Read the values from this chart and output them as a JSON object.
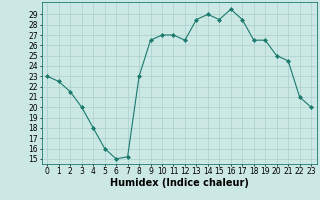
{
  "x": [
    0,
    1,
    2,
    3,
    4,
    5,
    6,
    7,
    8,
    9,
    10,
    11,
    12,
    13,
    14,
    15,
    16,
    17,
    18,
    19,
    20,
    21,
    22,
    23
  ],
  "y": [
    23,
    22.5,
    21.5,
    20,
    18,
    16,
    15,
    15.2,
    23,
    26.5,
    27,
    27,
    26.5,
    28.5,
    29,
    28.5,
    29.5,
    28.5,
    26.5,
    26.5,
    25,
    24.5,
    21,
    20
  ],
  "line_color": "#1a7a6e",
  "marker": "D",
  "marker_size": 2,
  "bg_color": "#cce8e4",
  "grid_color": "#aacfcb",
  "xlabel": "Humidex (Indice chaleur)",
  "xlim": [
    -0.5,
    23.5
  ],
  "ylim": [
    14.5,
    30.2
  ],
  "yticks": [
    15,
    16,
    17,
    18,
    19,
    20,
    21,
    22,
    23,
    24,
    25,
    26,
    27,
    28,
    29
  ],
  "xticks": [
    0,
    1,
    2,
    3,
    4,
    5,
    6,
    7,
    8,
    9,
    10,
    11,
    12,
    13,
    14,
    15,
    16,
    17,
    18,
    19,
    20,
    21,
    22,
    23
  ],
  "tick_fontsize": 5.5,
  "xlabel_fontsize": 7
}
